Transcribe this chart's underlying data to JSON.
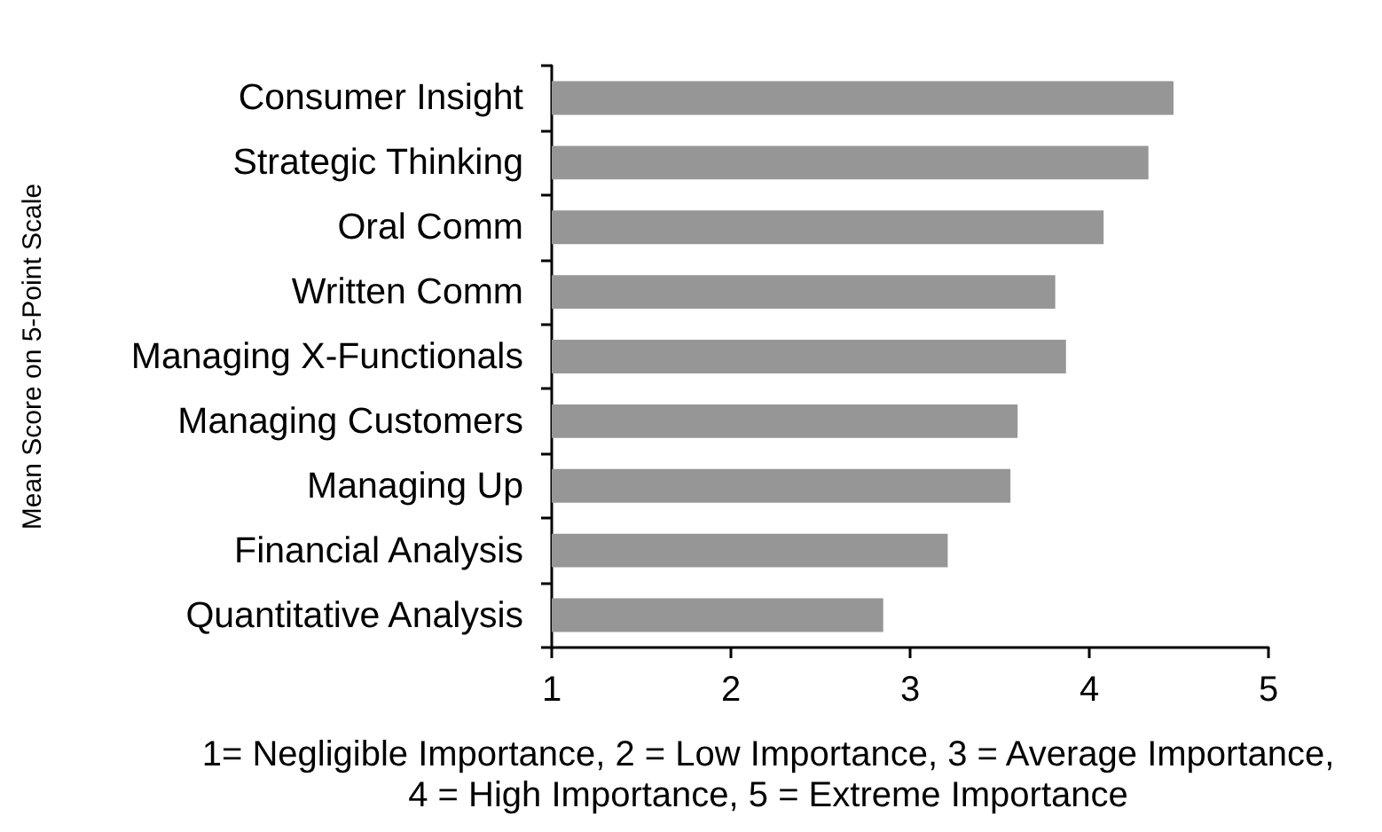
{
  "chart_data": {
    "type": "bar",
    "orientation": "horizontal",
    "ylabel": "Mean Score on 5-Point Scale",
    "xlabel": "1= Negligible Importance, 2 = Low Importance, 3 = Average Importance, 4 = High Importance, 5 = Extreme Importance",
    "categories": [
      "Consumer Insight",
      "Strategic Thinking",
      "Oral Comm",
      "Written Comm",
      "Managing X-Functionals",
      "Managing Customers",
      "Managing Up",
      "Financial Analysis",
      "Quantitative Analysis"
    ],
    "values": [
      4.47,
      4.33,
      4.08,
      3.81,
      3.87,
      3.6,
      3.56,
      3.21,
      2.85
    ],
    "color": "#969696",
    "xlim": [
      1,
      5
    ],
    "xticks": [
      1,
      2,
      3,
      4,
      5
    ],
    "grid": false
  }
}
